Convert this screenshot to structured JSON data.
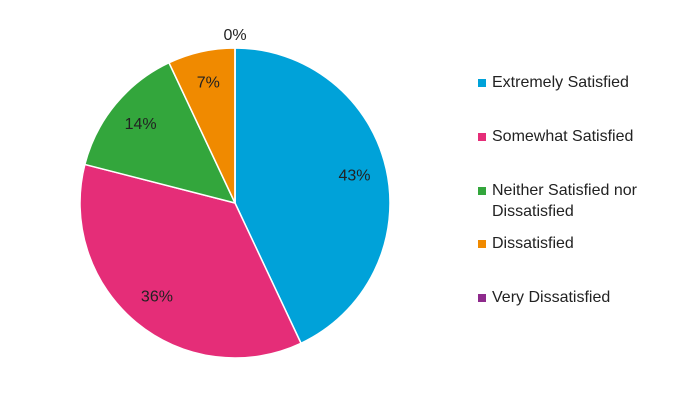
{
  "chart_data": {
    "type": "pie",
    "categories": [
      "Extremely Satisfied",
      "Somewhat Satisfied",
      "Neither Satisfied nor Dissatisfied",
      "Dissatisfied",
      "Very Dissatisfied"
    ],
    "values": [
      43,
      36,
      14,
      7,
      0
    ],
    "value_labels": [
      "43%",
      "36%",
      "14%",
      "7%",
      "0%"
    ],
    "colors": [
      "#00a2d9",
      "#e52d78",
      "#33a63c",
      "#f08a00",
      "#8e2a8c"
    ],
    "legend": "right"
  }
}
